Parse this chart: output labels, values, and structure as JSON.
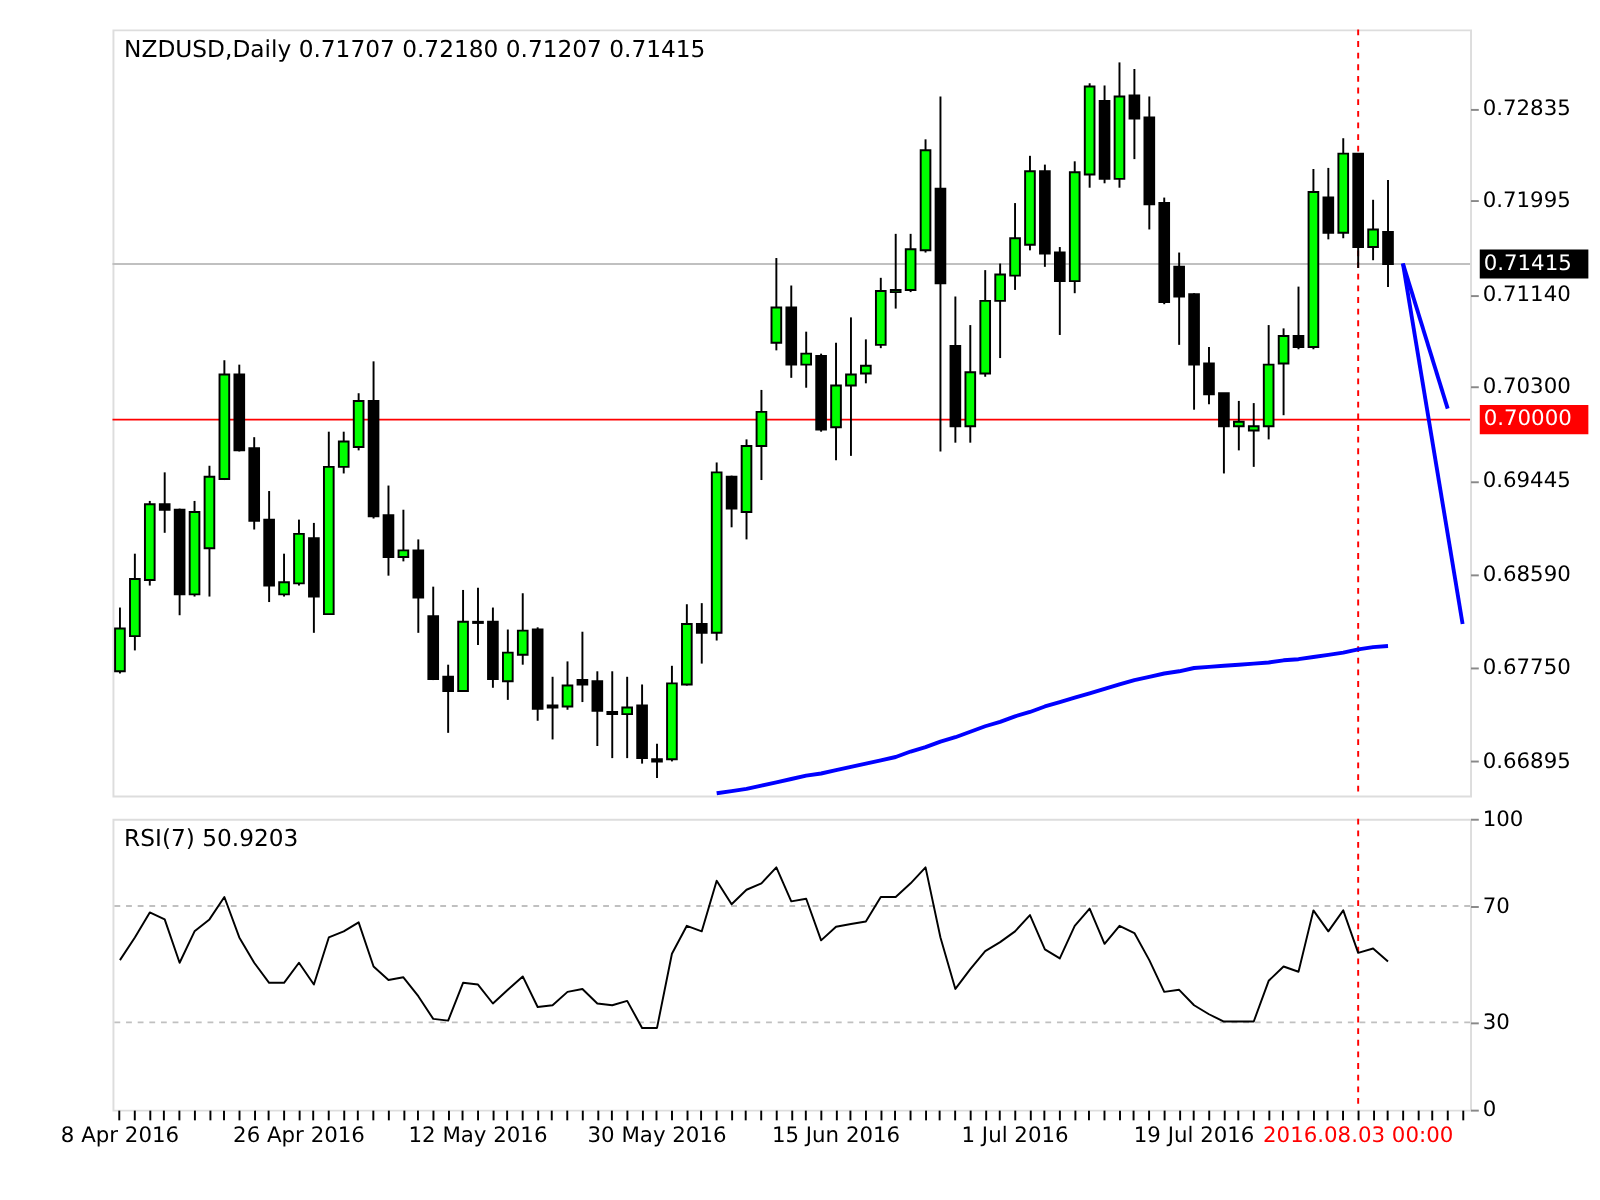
{
  "chart_data": [
    {
      "type": "candlestick",
      "title": "NZDUSD,Daily  0.71707 0.72180 0.71207 0.71415",
      "categories": [
        "8 Apr 2016",
        null,
        null,
        null,
        null,
        null,
        null,
        null,
        null,
        null,
        null,
        null,
        "26 Apr 2016",
        null,
        null,
        null,
        null,
        null,
        null,
        null,
        null,
        null,
        null,
        null,
        "12 May 2016",
        null,
        null,
        null,
        null,
        null,
        null,
        null,
        null,
        null,
        null,
        null,
        "30 May 2016",
        null,
        null,
        null,
        null,
        null,
        null,
        null,
        null,
        null,
        null,
        null,
        "15 Jun 2016",
        null,
        null,
        null,
        null,
        null,
        null,
        null,
        null,
        null,
        null,
        null,
        "1 Jul 2016",
        null,
        null,
        null,
        null,
        null,
        null,
        null,
        null,
        null,
        null,
        null,
        "19 Jul 2016",
        null,
        null,
        null,
        null,
        null,
        null,
        null,
        null,
        null,
        null,
        "2016.08.03 00:00",
        null,
        null,
        null,
        null,
        null,
        null,
        null
      ],
      "ohlc": [
        [
          0.6771,
          0.6829,
          0.6769,
          0.681
        ],
        [
          0.6803,
          0.6878,
          0.679,
          0.6855
        ],
        [
          0.6854,
          0.6926,
          0.6849,
          0.6923
        ],
        [
          0.6923,
          0.6952,
          0.6897,
          0.6918
        ],
        [
          0.6918,
          0.6919,
          0.6822,
          0.6841
        ],
        [
          0.6841,
          0.6926,
          0.6839,
          0.6916
        ],
        [
          0.6883,
          0.6958,
          0.6839,
          0.6948
        ],
        [
          0.6946,
          0.7054,
          0.6945,
          0.7041
        ],
        [
          0.7041,
          0.705,
          0.6971,
          0.6972
        ],
        [
          0.6974,
          0.6984,
          0.69,
          0.6908
        ],
        [
          0.6909,
          0.6935,
          0.6834,
          0.6849
        ],
        [
          0.6841,
          0.6878,
          0.6839,
          0.6852
        ],
        [
          0.6851,
          0.6909,
          0.6849,
          0.6896
        ],
        [
          0.6892,
          0.6906,
          0.6806,
          0.6839
        ],
        [
          0.6823,
          0.6989,
          0.6823,
          0.6957
        ],
        [
          0.6957,
          0.6989,
          0.6951,
          0.698
        ],
        [
          0.6975,
          0.7024,
          0.6972,
          0.7017
        ],
        [
          0.7017,
          0.7053,
          0.691,
          0.6912
        ],
        [
          0.6913,
          0.694,
          0.6858,
          0.6875
        ],
        [
          0.6875,
          0.6918,
          0.6871,
          0.6881
        ],
        [
          0.6881,
          0.6891,
          0.6806,
          0.6838
        ],
        [
          0.6821,
          0.6848,
          0.6763,
          0.6764
        ],
        [
          0.6766,
          0.6777,
          0.6715,
          0.6753
        ],
        [
          0.6753,
          0.6845,
          0.6753,
          0.6816
        ],
        [
          0.6816,
          0.6847,
          0.6795,
          0.6815
        ],
        [
          0.6816,
          0.6829,
          0.6756,
          0.6764
        ],
        [
          0.6762,
          0.6809,
          0.6745,
          0.6788
        ],
        [
          0.6786,
          0.6842,
          0.6777,
          0.6808
        ],
        [
          0.6809,
          0.6811,
          0.6726,
          0.6737
        ],
        [
          0.674,
          0.6766,
          0.6709,
          0.6738
        ],
        [
          0.6739,
          0.678,
          0.6736,
          0.6758
        ],
        [
          0.6763,
          0.6807,
          0.6743,
          0.6759
        ],
        [
          0.6762,
          0.6771,
          0.6703,
          0.6735
        ],
        [
          0.6734,
          0.6771,
          0.6692,
          0.6732
        ],
        [
          0.6732,
          0.6766,
          0.6692,
          0.6738
        ],
        [
          0.674,
          0.6759,
          0.6687,
          0.6692
        ],
        [
          0.6691,
          0.6705,
          0.6674,
          0.6689
        ],
        [
          0.6691,
          0.6776,
          0.6689,
          0.676
        ],
        [
          0.6759,
          0.6832,
          0.6758,
          0.6814
        ],
        [
          0.6814,
          0.6833,
          0.6778,
          0.6806
        ],
        [
          0.6806,
          0.6961,
          0.6799,
          0.6952
        ],
        [
          0.6948,
          0.6949,
          0.6902,
          0.6919
        ],
        [
          0.6916,
          0.6982,
          0.6891,
          0.6976
        ],
        [
          0.6976,
          0.7027,
          0.6945,
          0.7007
        ],
        [
          0.707,
          0.7147,
          0.7063,
          0.7102
        ],
        [
          0.7102,
          0.7122,
          0.7038,
          0.705
        ],
        [
          0.705,
          0.708,
          0.7029,
          0.706
        ],
        [
          0.7058,
          0.706,
          0.6989,
          0.6991
        ],
        [
          0.6993,
          0.707,
          0.6963,
          0.7031
        ],
        [
          0.7031,
          0.7093,
          0.6967,
          0.7041
        ],
        [
          0.7042,
          0.7073,
          0.7033,
          0.7049
        ],
        [
          0.7068,
          0.7129,
          0.7065,
          0.7117
        ],
        [
          0.7116,
          0.7169,
          0.7101,
          0.7118
        ],
        [
          0.7118,
          0.7169,
          0.7116,
          0.7155
        ],
        [
          0.7154,
          0.7255,
          0.7152,
          0.7245
        ],
        [
          0.721,
          0.7294,
          0.6971,
          0.7124
        ],
        [
          0.7067,
          0.7112,
          0.6979,
          0.6994
        ],
        [
          0.6994,
          0.7086,
          0.6979,
          0.7043
        ],
        [
          0.7042,
          0.7136,
          0.7039,
          0.7108
        ],
        [
          0.7108,
          0.7142,
          0.7056,
          0.7132
        ],
        [
          0.7131,
          0.7197,
          0.7118,
          0.7165
        ],
        [
          0.7159,
          0.724,
          0.7154,
          0.7226
        ],
        [
          0.7226,
          0.7232,
          0.7139,
          0.7151
        ],
        [
          0.7152,
          0.7157,
          0.7077,
          0.7126
        ],
        [
          0.7126,
          0.7235,
          0.7115,
          0.7225
        ],
        [
          0.7223,
          0.7306,
          0.7211,
          0.7303
        ],
        [
          0.729,
          0.7304,
          0.7215,
          0.7219
        ],
        [
          0.7219,
          0.7325,
          0.7211,
          0.7294
        ],
        [
          0.7295,
          0.7319,
          0.7237,
          0.7274
        ],
        [
          0.7275,
          0.7294,
          0.7173,
          0.7196
        ],
        [
          0.7197,
          0.7202,
          0.7105,
          0.7107
        ],
        [
          0.7139,
          0.7152,
          0.7068,
          0.7112
        ],
        [
          0.7114,
          0.7115,
          0.7009,
          0.705
        ],
        [
          0.7051,
          0.7066,
          0.7014,
          0.7023
        ],
        [
          0.7024,
          0.7024,
          0.6951,
          0.6994
        ],
        [
          0.6994,
          0.7017,
          0.6972,
          0.6998
        ],
        [
          0.699,
          0.7015,
          0.6957,
          0.6994
        ],
        [
          0.6994,
          0.7086,
          0.6982,
          0.705
        ],
        [
          0.7051,
          0.7083,
          0.7004,
          0.7076
        ],
        [
          0.7076,
          0.7121,
          0.7064,
          0.7066
        ],
        [
          0.7066,
          0.7228,
          0.7064,
          0.7207
        ],
        [
          0.7202,
          0.7229,
          0.7164,
          0.717
        ],
        [
          0.717,
          0.7256,
          0.7165,
          0.7242
        ],
        [
          0.7242,
          0.7242,
          0.7138,
          0.7157
        ],
        [
          0.7157,
          0.72,
          0.7145,
          0.7173
        ],
        [
          0.71707,
          0.7218,
          0.71207,
          0.71415
        ],
        null,
        null,
        null,
        null,
        null
      ],
      "series": [
        {
          "type": "line",
          "color": "#0000ff",
          "values": [
            null,
            null,
            null,
            null,
            null,
            null,
            null,
            null,
            null,
            null,
            null,
            null,
            null,
            null,
            null,
            null,
            null,
            null,
            null,
            null,
            null,
            null,
            null,
            null,
            null,
            null,
            null,
            null,
            null,
            null,
            null,
            null,
            null,
            null,
            null,
            null,
            null,
            null,
            null,
            null,
            0.666,
            0.6662,
            0.6664,
            0.6667,
            0.667,
            0.6673,
            0.6676,
            0.6678,
            0.6681,
            0.6684,
            0.6687,
            0.669,
            0.6693,
            0.6698,
            0.6702,
            0.6707,
            0.6711,
            0.6716,
            0.6721,
            0.6725,
            0.673,
            0.6734,
            0.6739,
            0.6743,
            0.6747,
            0.6751,
            0.6755,
            0.6759,
            0.6763,
            0.6766,
            0.6769,
            0.6771,
            0.6774,
            0.6775,
            0.6776,
            0.6777,
            0.6778,
            0.6779,
            0.6781,
            0.6782,
            0.6784,
            0.6786,
            0.6788,
            0.6791,
            0.6793,
            0.6794,
            null,
            null,
            null,
            null,
            null
          ]
        },
        {
          "type": "line",
          "color": "#0000ff",
          "values": [
            null,
            null,
            null,
            null,
            null,
            null,
            null,
            null,
            null,
            null,
            null,
            null,
            null,
            null,
            null,
            null,
            null,
            null,
            null,
            null,
            null,
            null,
            null,
            null,
            null,
            null,
            null,
            null,
            null,
            null,
            null,
            null,
            null,
            null,
            null,
            null,
            null,
            null,
            null,
            null,
            null,
            null,
            null,
            null,
            null,
            null,
            null,
            null,
            null,
            null,
            null,
            null,
            null,
            null,
            null,
            null,
            null,
            null,
            null,
            null,
            null,
            null,
            null,
            null,
            null,
            null,
            null,
            null,
            null,
            null,
            null,
            null,
            null,
            null,
            null,
            null,
            null,
            null,
            null,
            null,
            null,
            null,
            null,
            null,
            null,
            null,
            0.7142,
            null,
            null,
            0.701,
            null
          ]
        },
        {
          "type": "line",
          "color": "#0000ff",
          "values": [
            null,
            null,
            null,
            null,
            null,
            null,
            null,
            null,
            null,
            null,
            null,
            null,
            null,
            null,
            null,
            null,
            null,
            null,
            null,
            null,
            null,
            null,
            null,
            null,
            null,
            null,
            null,
            null,
            null,
            null,
            null,
            null,
            null,
            null,
            null,
            null,
            null,
            null,
            null,
            null,
            null,
            null,
            null,
            null,
            null,
            null,
            null,
            null,
            null,
            null,
            null,
            null,
            null,
            null,
            null,
            null,
            null,
            null,
            null,
            null,
            null,
            null,
            null,
            null,
            null,
            null,
            null,
            null,
            null,
            null,
            null,
            null,
            null,
            null,
            null,
            null,
            null,
            null,
            null,
            null,
            null,
            null,
            null,
            null,
            null,
            null,
            0.7142,
            null,
            null,
            null,
            0.6814
          ]
        }
      ],
      "ylim": [
        0.6658,
        0.7355
      ],
      "yticks": [
        {
          "value": 0.66895,
          "label": "0.66895"
        },
        {
          "value": 0.6775,
          "label": "0.67750"
        },
        {
          "value": 0.6859,
          "label": "0.68590"
        },
        {
          "value": 0.69445,
          "label": "0.69445"
        },
        {
          "value": 0.703,
          "label": "0.70300"
        },
        {
          "value": 0.7114,
          "label": "0.71140"
        },
        {
          "value": 0.71995,
          "label": "0.71995"
        },
        {
          "value": 0.72835,
          "label": "0.72835"
        }
      ],
      "ref_lines": [
        {
          "axis": "y",
          "value": 0.71415,
          "label": "0.71415",
          "color": "#c0c0c0",
          "line_style": "solid"
        },
        {
          "axis": "y",
          "value": 0.7,
          "label": "0.70000",
          "color": "#ff0000",
          "line_style": "solid"
        },
        {
          "axis": "x",
          "value": "2016.08.03 00:00",
          "color": "#ff0000",
          "line_style": "dashed"
        }
      ],
      "tick_labels": "y"
    },
    {
      "type": "line",
      "title": "RSI(7) 50.9203",
      "categories": [
        "8 Apr 2016",
        null,
        null,
        null,
        null,
        null,
        null,
        null,
        null,
        null,
        null,
        null,
        "26 Apr 2016",
        null,
        null,
        null,
        null,
        null,
        null,
        null,
        null,
        null,
        null,
        null,
        "12 May 2016",
        null,
        null,
        null,
        null,
        null,
        null,
        null,
        null,
        null,
        null,
        null,
        "30 May 2016",
        null,
        null,
        null,
        null,
        null,
        null,
        null,
        null,
        null,
        null,
        null,
        "15 Jun 2016",
        null,
        null,
        null,
        null,
        null,
        null,
        null,
        null,
        null,
        null,
        null,
        "1 Jul 2016",
        null,
        null,
        null,
        null,
        null,
        null,
        null,
        null,
        null,
        null,
        null,
        "19 Jul 2016",
        null,
        null,
        null,
        null,
        null,
        null,
        null,
        null,
        null,
        null,
        "2016.08.03 00:00",
        null,
        null,
        null,
        null,
        null,
        null,
        null
      ],
      "series": [
        {
          "color": "#000000",
          "values": [
            51.4,
            59.2,
            67.8,
            65.4,
            50.5,
            61.3,
            65.4,
            73.1,
            59.2,
            50.5,
            43.6,
            43.6,
            50.5,
            43.0,
            59.2,
            61.3,
            64.4,
            49.2,
            44.6,
            45.5,
            39.0,
            31.2,
            30.6,
            43.6,
            43.0,
            36.5,
            41.2,
            45.8,
            35.3,
            35.9,
            40.5,
            41.5,
            36.5,
            35.9,
            37.4,
            28.1,
            28.1,
            53.6,
            63.2,
            61.3,
            78.7,
            70.6,
            75.6,
            77.8,
            83.3,
            71.6,
            72.5,
            58.2,
            62.9,
            63.8,
            64.7,
            73.1,
            73.1,
            77.8,
            83.3,
            59.2,
            41.5,
            48.3,
            54.5,
            57.6,
            61.3,
            66.9,
            55.1,
            52.0,
            63.2,
            69.1,
            57.0,
            63.2,
            60.7,
            51.4,
            40.5,
            41.2,
            35.9,
            32.8,
            30.3,
            30.3,
            30.3,
            44.3,
            49.2,
            47.4,
            68.5,
            61.3,
            68.5,
            53.9,
            55.4,
            50.9,
            null,
            null,
            null,
            null,
            null
          ]
        }
      ],
      "ylim": [
        0,
        100
      ],
      "yticks": [
        0,
        30,
        70,
        100
      ],
      "ref_lines": [
        {
          "axis": "y",
          "value": 30,
          "color": "#c0c0c0",
          "line_style": "dashed"
        },
        {
          "axis": "y",
          "value": 70,
          "color": "#c0c0c0",
          "line_style": "dashed"
        },
        {
          "axis": "x",
          "value": "2016.08.03 00:00",
          "color": "#ff0000",
          "line_style": "dashed"
        }
      ]
    }
  ]
}
